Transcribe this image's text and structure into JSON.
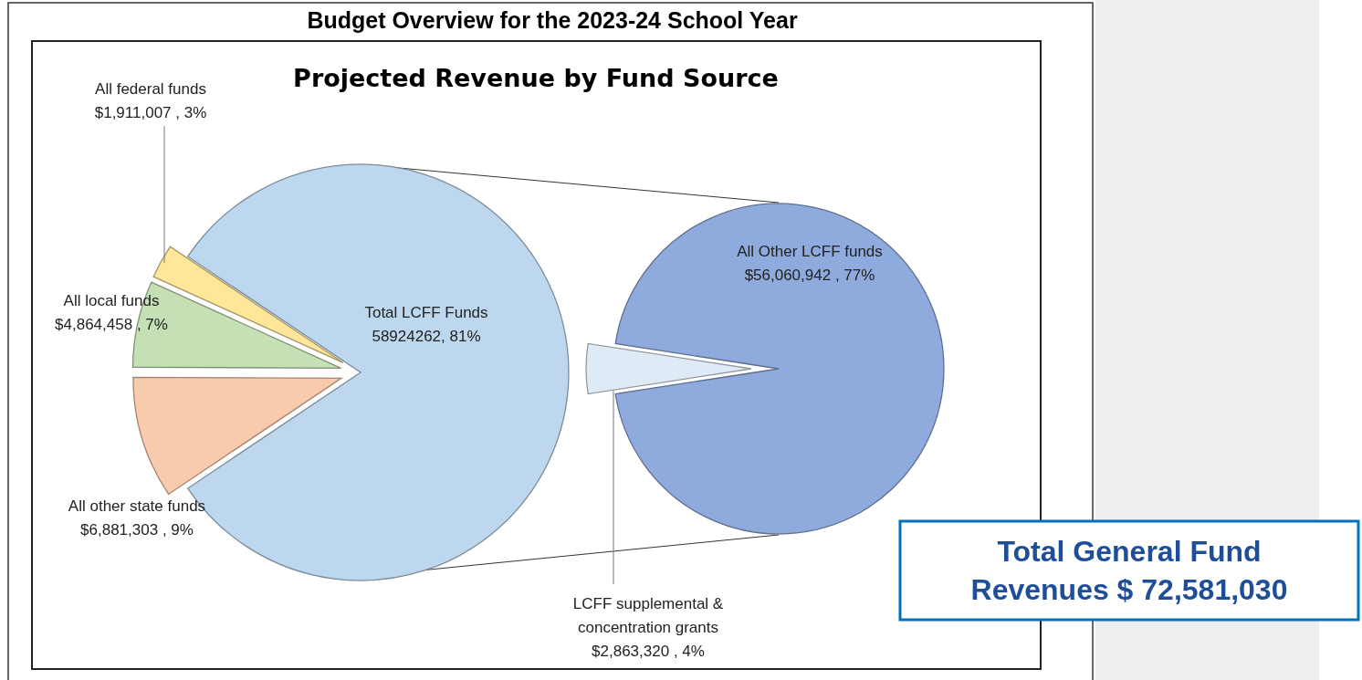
{
  "chart_data": [
    {
      "type": "pie",
      "title": "Budget Overview for the 2023-24 School Year",
      "subtitle": "Projected Revenue by Fund Source",
      "categories": [
        "Total LCFF Funds",
        "All other state funds",
        "All local funds",
        "All federal funds"
      ],
      "values": [
        58924262,
        6881303,
        4864458,
        1911007
      ],
      "value_labels": [
        "58924262, 81%",
        "$6,881,303 , 9%",
        "$4,864,458 , 7%",
        "$1,911,007 , 3%"
      ],
      "colors": [
        "#bdd7ee",
        "#f8cbad",
        "#c5e0b4",
        "#ffe699"
      ],
      "annotations": [
        "Total General Fund Revenues $ 72,581,030"
      ]
    },
    {
      "type": "pie",
      "categories": [
        "All Other LCFF funds",
        "LCFF supplemental & concentration grants"
      ],
      "values": [
        56060942,
        2863320
      ],
      "value_labels": [
        "$56,060,942 , 77%",
        "$2,863,320 , 4%"
      ],
      "colors": [
        "#8faadc",
        "#deebf7"
      ]
    }
  ]
}
